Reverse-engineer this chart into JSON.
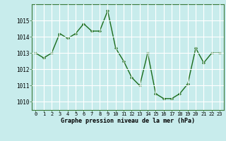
{
  "x": [
    0,
    1,
    2,
    3,
    4,
    5,
    6,
    7,
    8,
    9,
    10,
    11,
    12,
    13,
    14,
    15,
    16,
    17,
    18,
    19,
    20,
    21,
    22,
    23
  ],
  "y": [
    1013.0,
    1012.7,
    1013.0,
    1014.2,
    1013.9,
    1014.2,
    1014.8,
    1014.35,
    1014.35,
    1015.6,
    1013.3,
    1012.5,
    1011.5,
    1011.0,
    1013.0,
    1010.5,
    1010.2,
    1010.2,
    1010.5,
    1011.1,
    1013.3,
    1012.4,
    1013.0,
    1013.0
  ],
  "line_color": "#1a6b1a",
  "marker": "D",
  "marker_size": 2.2,
  "bg_color": "#c8ecec",
  "grid_color": "#ffffff",
  "ylabel_ticks": [
    1010,
    1011,
    1012,
    1013,
    1014,
    1015
  ],
  "xlabel_ticks": [
    0,
    1,
    2,
    3,
    4,
    5,
    6,
    7,
    8,
    9,
    10,
    11,
    12,
    13,
    14,
    15,
    16,
    17,
    18,
    19,
    20,
    21,
    22,
    23
  ],
  "ylim": [
    1009.5,
    1016.0
  ],
  "xlim": [
    -0.5,
    23.5
  ],
  "xlabel": "Graphe pression niveau de la mer (hPa)",
  "border_color": "#3a7a3a",
  "line_width": 1.0
}
